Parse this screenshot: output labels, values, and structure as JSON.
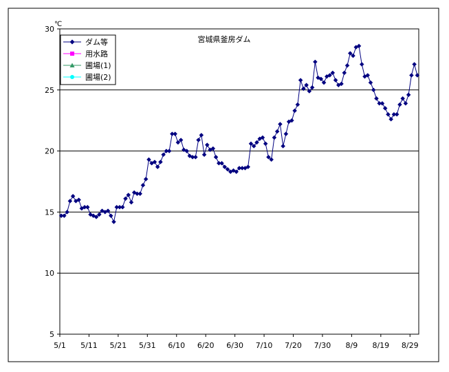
{
  "chart_data": {
    "type": "line",
    "title": "宮城県釜房ダム",
    "ylabel": "℃",
    "xlabel": "",
    "ylim": [
      5,
      30
    ],
    "yticks": [
      5,
      10,
      15,
      20,
      25,
      30
    ],
    "grid": "horizontal",
    "legend_position": "top-left",
    "x_tick_labels": [
      "5/1",
      "5/11",
      "5/21",
      "5/31",
      "6/10",
      "6/20",
      "6/30",
      "7/10",
      "7/20",
      "7/30",
      "8/9",
      "8/19",
      "8/29"
    ],
    "series": [
      {
        "name": "ダム等",
        "color": "#000080",
        "marker": "diamond",
        "start": "5/1",
        "values": [
          14.7,
          14.7,
          15.0,
          15.9,
          16.3,
          15.9,
          16.0,
          15.3,
          15.4,
          15.4,
          14.8,
          14.7,
          14.6,
          14.8,
          15.1,
          15.0,
          15.1,
          14.7,
          14.2,
          15.4,
          15.4,
          15.4,
          16.1,
          16.4,
          15.8,
          16.6,
          16.5,
          16.5,
          17.2,
          17.7,
          19.3,
          19.0,
          19.1,
          18.7,
          19.1,
          19.7,
          20.0,
          20.0,
          21.4,
          21.4,
          20.7,
          20.9,
          20.1,
          20.0,
          19.6,
          19.5,
          19.5,
          20.9,
          21.3,
          19.7,
          20.5,
          20.1,
          20.2,
          19.5,
          19.0,
          19.0,
          18.7,
          18.5,
          18.3,
          18.4,
          18.3,
          18.6,
          18.6,
          18.6,
          18.7,
          20.6,
          20.4,
          20.7,
          21.0,
          21.1,
          20.6,
          19.5,
          19.3,
          21.1,
          21.6,
          22.2,
          20.4,
          21.4,
          22.4,
          22.5,
          23.3,
          23.8,
          25.8,
          25.1,
          25.4,
          24.9,
          25.2,
          27.3,
          26.0,
          25.9,
          25.6,
          26.1,
          26.2,
          26.4,
          25.8,
          25.4,
          25.5,
          26.4,
          27.0,
          28.0,
          27.8,
          28.5,
          28.6,
          27.1,
          26.1,
          26.2,
          25.6,
          25.0,
          24.3,
          23.9,
          23.9,
          23.5,
          23.0,
          22.6,
          23.0,
          23.0,
          23.8,
          24.3,
          23.9,
          24.6,
          26.2,
          27.1,
          26.2
        ]
      },
      {
        "name": "用水路",
        "color": "#FF00FF",
        "marker": "square",
        "values": []
      },
      {
        "name": "圃場(1)",
        "color": "#339966",
        "marker": "triangle",
        "values": []
      },
      {
        "name": "圃場(2)",
        "color": "#00FFFF",
        "marker": "circle",
        "values": []
      }
    ]
  }
}
